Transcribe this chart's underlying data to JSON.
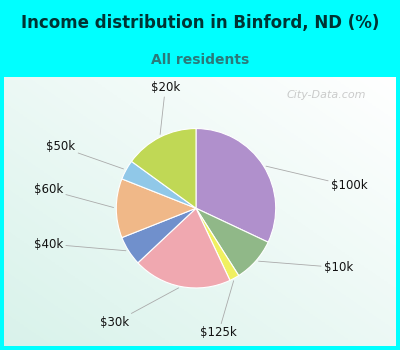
{
  "title": "Income distribution in Binford, ND (%)",
  "subtitle": "All residents",
  "title_color": "#003333",
  "subtitle_color": "#2a7a7a",
  "background_cyan": "#00ffff",
  "watermark": "City-Data.com",
  "slices": [
    {
      "label": "$100k",
      "value": 32,
      "color": "#b090cc"
    },
    {
      "label": "$10k",
      "value": 9,
      "color": "#90b888"
    },
    {
      "label": "$125k",
      "value": 2,
      "color": "#f0f060"
    },
    {
      "label": "$30k",
      "value": 20,
      "color": "#f0a8b0"
    },
    {
      "label": "$40k",
      "value": 6,
      "color": "#7090cc"
    },
    {
      "label": "$60k",
      "value": 12,
      "color": "#f0b888"
    },
    {
      "label": "$50k",
      "value": 4,
      "color": "#90c8e8"
    },
    {
      "label": "$20k",
      "value": 15,
      "color": "#c0d855"
    }
  ],
  "label_color": "#111111",
  "label_fontsize": 8.5,
  "figsize": [
    4.0,
    3.5
  ],
  "dpi": 100,
  "title_fontsize": 12,
  "subtitle_fontsize": 10
}
